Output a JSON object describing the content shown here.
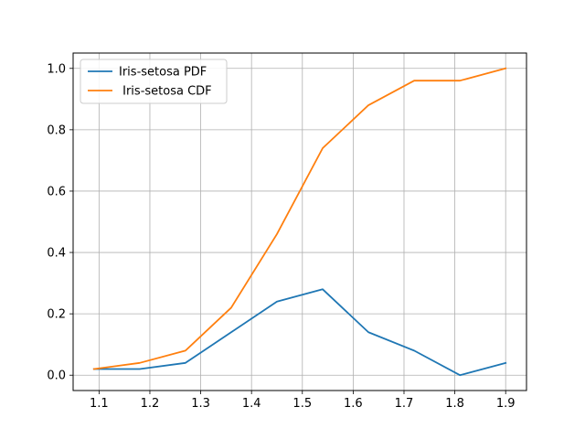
{
  "chart_data": {
    "type": "line",
    "title": "",
    "xlabel": "",
    "ylabel": "",
    "xlim": [
      1.049,
      1.941
    ],
    "ylim": [
      -0.05,
      1.05
    ],
    "xticks": [
      1.1,
      1.2,
      1.3,
      1.4,
      1.5,
      1.6,
      1.7,
      1.8,
      1.9
    ],
    "xtick_labels": [
      "1.1",
      "1.2",
      "1.3",
      "1.4",
      "1.5",
      "1.6",
      "1.7",
      "1.8",
      "1.9"
    ],
    "yticks": [
      0.0,
      0.2,
      0.4,
      0.6,
      0.8,
      1.0
    ],
    "ytick_labels": [
      "0.0",
      "0.2",
      "0.4",
      "0.6",
      "0.8",
      "1.0"
    ],
    "grid": true,
    "legend": "top-left",
    "x": [
      1.09,
      1.18,
      1.27,
      1.36,
      1.45,
      1.54,
      1.63,
      1.72,
      1.81,
      1.9
    ],
    "series": [
      {
        "name": "Iris-setosa PDF",
        "color": "#1f77b4",
        "values": [
          0.02,
          0.02,
          0.04,
          0.14,
          0.24,
          0.28,
          0.14,
          0.08,
          0.0,
          0.04
        ]
      },
      {
        "name": " Iris-setosa CDF",
        "color": "#ff7f0e",
        "values": [
          0.02,
          0.04,
          0.08,
          0.22,
          0.46,
          0.74,
          0.88,
          0.96,
          0.96,
          1.0
        ]
      }
    ]
  }
}
